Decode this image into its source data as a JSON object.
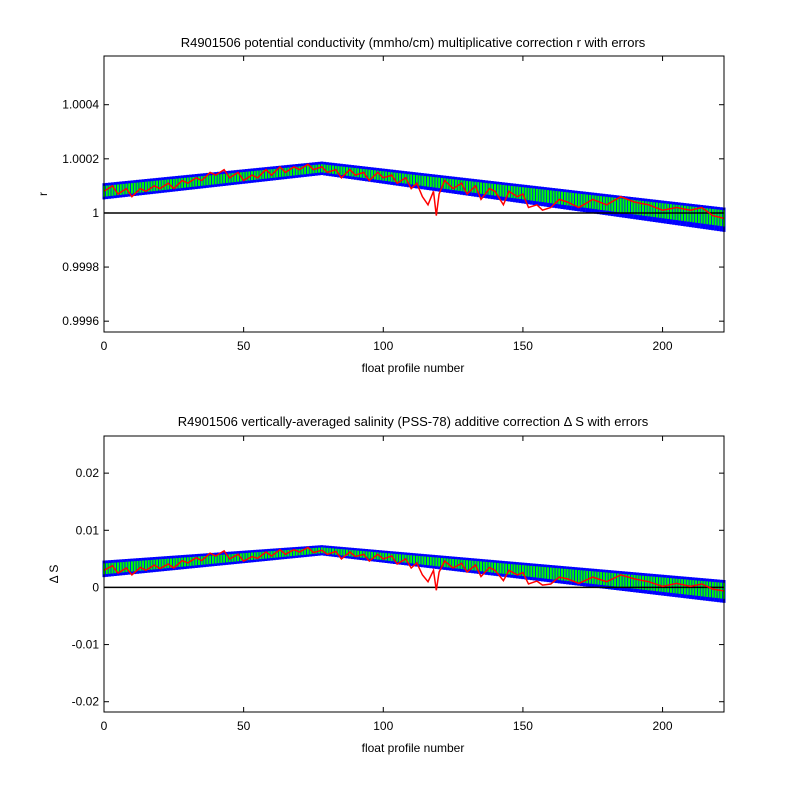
{
  "chart_data": [
    {
      "type": "line",
      "title": "R4901506 potential conductivity (mmho/cm) multiplicative correction r with errors",
      "xlabel": "float profile number",
      "ylabel": "r",
      "xlim": [
        0,
        222
      ],
      "ylim": [
        0.99956,
        1.00058
      ],
      "xticks": [
        0,
        50,
        100,
        150,
        200
      ],
      "yticks": [
        0.9996,
        0.9998,
        1,
        1.0002,
        1.0004
      ],
      "ytick_labels": [
        "0.9996",
        "0.9998",
        "1",
        "1.0002",
        "1.0004"
      ],
      "reference_line": 1,
      "grid": false,
      "colors": {
        "outer_error": "#0000ff",
        "inner_error": "#00ff00",
        "fit": "#ff0000",
        "reference": "#000000"
      },
      "series": [
        {
          "role": "outer_error_band",
          "x": [
            0,
            78,
            222
          ],
          "upper": [
            1.00011,
            1.00019,
            1.00002
          ],
          "lower": [
            1.00005,
            1.00014,
            0.99993
          ]
        },
        {
          "role": "inner_error_band",
          "x": [
            0,
            78,
            222
          ],
          "upper": [
            1.0001,
            1.00018,
            1.00001
          ],
          "lower": [
            1.00006,
            1.00015,
            0.99995
          ]
        },
        {
          "role": "correction_fit",
          "x": [
            0,
            3,
            5,
            8,
            10,
            13,
            15,
            18,
            20,
            23,
            25,
            28,
            30,
            33,
            35,
            38,
            40,
            43,
            45,
            48,
            50,
            53,
            55,
            58,
            60,
            63,
            65,
            68,
            70,
            73,
            75,
            78,
            80,
            83,
            85,
            88,
            90,
            93,
            95,
            98,
            100,
            103,
            105,
            108,
            110,
            112,
            114,
            116,
            118,
            119,
            120,
            122,
            125,
            128,
            130,
            133,
            135,
            138,
            140,
            143,
            145,
            148,
            150,
            152,
            155,
            157,
            160,
            163,
            166,
            170,
            175,
            180,
            185,
            190,
            195,
            200,
            205,
            210,
            214,
            218,
            222
          ],
          "y": [
            1.00008,
            1.0001,
            1.00007,
            1.00009,
            1.00006,
            1.00009,
            1.00008,
            1.0001,
            1.00009,
            1.00011,
            1.00009,
            1.00012,
            1.00011,
            1.00013,
            1.00012,
            1.00015,
            1.00014,
            1.00016,
            1.00013,
            1.00015,
            1.00012,
            1.00014,
            1.00013,
            1.00016,
            1.00014,
            1.00017,
            1.00015,
            1.00017,
            1.00016,
            1.00018,
            1.00016,
            1.00017,
            1.00015,
            1.00016,
            1.00013,
            1.00016,
            1.00014,
            1.00015,
            1.00012,
            1.00015,
            1.00013,
            1.00014,
            1.00011,
            1.00013,
            1.00009,
            1.00011,
            1.00006,
            1.00003,
            1.00008,
            0.99999,
            1.00007,
            1.00012,
            1.00009,
            1.00011,
            1.00007,
            1.0001,
            1.00005,
            1.00009,
            1.00008,
            1.00003,
            1.00008,
            1.00006,
            1.00007,
            1.00002,
            1.00003,
            1.00001,
            1.00002,
            1.00005,
            1.00004,
            1.00002,
            1.00005,
            1.00003,
            1.00006,
            1.00004,
            1.00003,
            1.00001,
            1.00002,
            1.00001,
            1.00002,
            0.99999,
            0.99998
          ]
        }
      ]
    },
    {
      "type": "line",
      "title": "R4901506 vertically-averaged salinity (PSS-78) additive correction Δ S with errors",
      "xlabel": "float profile number",
      "ylabel": "Δ S",
      "xlim": [
        0,
        222
      ],
      "ylim": [
        -0.0218,
        0.0265
      ],
      "xticks": [
        0,
        50,
        100,
        150,
        200
      ],
      "yticks": [
        -0.02,
        -0.01,
        0,
        0.01,
        0.02
      ],
      "ytick_labels": [
        "-0.02",
        "-0.01",
        "0",
        "0.01",
        "0.02"
      ],
      "reference_line": 0,
      "grid": false,
      "colors": {
        "outer_error": "#0000ff",
        "inner_error": "#00ff00",
        "fit": "#ff0000",
        "reference": "#000000"
      },
      "series": [
        {
          "role": "outer_error_band",
          "x": [
            0,
            78,
            222
          ],
          "upper": [
            0.0047,
            0.0074,
            0.0013
          ],
          "lower": [
            0.0018,
            0.0056,
            -0.0027
          ]
        },
        {
          "role": "inner_error_band",
          "x": [
            0,
            78,
            222
          ],
          "upper": [
            0.0042,
            0.007,
            0.0008
          ],
          "lower": [
            0.0023,
            0.006,
            -0.002
          ]
        },
        {
          "role": "correction_fit",
          "x": [
            0,
            3,
            5,
            8,
            10,
            13,
            15,
            18,
            20,
            23,
            25,
            28,
            30,
            33,
            35,
            38,
            40,
            43,
            45,
            48,
            50,
            53,
            55,
            58,
            60,
            63,
            65,
            68,
            70,
            73,
            75,
            78,
            80,
            83,
            85,
            88,
            90,
            93,
            95,
            98,
            100,
            103,
            105,
            108,
            110,
            112,
            114,
            116,
            118,
            119,
            120,
            122,
            125,
            128,
            130,
            133,
            135,
            138,
            140,
            143,
            145,
            148,
            150,
            152,
            155,
            157,
            160,
            163,
            166,
            170,
            175,
            180,
            185,
            190,
            195,
            200,
            205,
            210,
            214,
            218,
            222
          ],
          "y": [
            0.003,
            0.0038,
            0.0025,
            0.0034,
            0.0022,
            0.0035,
            0.003,
            0.0039,
            0.0033,
            0.0041,
            0.0034,
            0.0047,
            0.0043,
            0.0052,
            0.0047,
            0.006,
            0.0055,
            0.0064,
            0.005,
            0.0058,
            0.0046,
            0.0054,
            0.0051,
            0.0062,
            0.0055,
            0.0066,
            0.0058,
            0.0066,
            0.0062,
            0.007,
            0.0061,
            0.0065,
            0.0058,
            0.0063,
            0.005,
            0.0062,
            0.0054,
            0.0058,
            0.0046,
            0.0058,
            0.005,
            0.0055,
            0.0041,
            0.005,
            0.0034,
            0.0043,
            0.0022,
            0.001,
            0.003,
            -0.0005,
            0.0027,
            0.0046,
            0.0034,
            0.0042,
            0.0027,
            0.0039,
            0.0019,
            0.0035,
            0.003,
            0.0012,
            0.003,
            0.0022,
            0.0026,
            0.0006,
            0.0011,
            0.0004,
            0.0006,
            0.0018,
            0.0015,
            0.0007,
            0.0018,
            0.001,
            0.0022,
            0.0015,
            0.001,
            0.0002,
            0.0007,
            0.0002,
            0.0006,
            -0.0003,
            -0.0006
          ]
        }
      ]
    }
  ]
}
